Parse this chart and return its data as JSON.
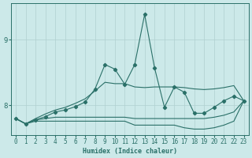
{
  "xlabel": "Humidex (Indice chaleur)",
  "x": [
    0,
    1,
    2,
    3,
    4,
    5,
    6,
    7,
    8,
    9,
    10,
    11,
    12,
    13,
    14,
    15,
    16,
    17,
    18,
    19,
    20,
    21,
    22,
    23
  ],
  "line_main": [
    7.8,
    7.72,
    7.78,
    7.83,
    7.9,
    7.93,
    7.98,
    8.05,
    8.25,
    8.62,
    8.55,
    8.32,
    8.62,
    9.38,
    8.57,
    7.97,
    8.28,
    8.2,
    7.88,
    7.88,
    7.97,
    8.07,
    8.14,
    8.07
  ],
  "line_upper": [
    7.8,
    7.72,
    7.8,
    7.87,
    7.93,
    7.97,
    8.03,
    8.1,
    8.22,
    8.35,
    8.33,
    8.33,
    8.28,
    8.27,
    8.28,
    8.28,
    8.28,
    8.27,
    8.25,
    8.24,
    8.25,
    8.27,
    8.3,
    8.07
  ],
  "line_mid": [
    7.8,
    7.72,
    7.78,
    7.8,
    7.82,
    7.82,
    7.82,
    7.82,
    7.82,
    7.82,
    7.82,
    7.82,
    7.8,
    7.8,
    7.8,
    7.8,
    7.8,
    7.8,
    7.8,
    7.8,
    7.82,
    7.85,
    7.9,
    8.07
  ],
  "line_lower": [
    7.8,
    7.72,
    7.76,
    7.76,
    7.76,
    7.76,
    7.76,
    7.76,
    7.76,
    7.76,
    7.76,
    7.76,
    7.7,
    7.7,
    7.7,
    7.7,
    7.7,
    7.66,
    7.64,
    7.64,
    7.66,
    7.7,
    7.76,
    8.07
  ],
  "bg_color": "#cce9e9",
  "grid_color": "#b0d0d0",
  "line_color": "#2a7068",
  "marker": "D",
  "marker_size": 2.2,
  "ylim": [
    7.55,
    9.55
  ],
  "yticks": [
    8,
    9
  ],
  "xlim": [
    -0.5,
    23.5
  ],
  "xticks": [
    0,
    1,
    2,
    3,
    4,
    5,
    6,
    7,
    8,
    9,
    10,
    11,
    12,
    13,
    14,
    15,
    16,
    17,
    18,
    19,
    20,
    21,
    22,
    23
  ]
}
